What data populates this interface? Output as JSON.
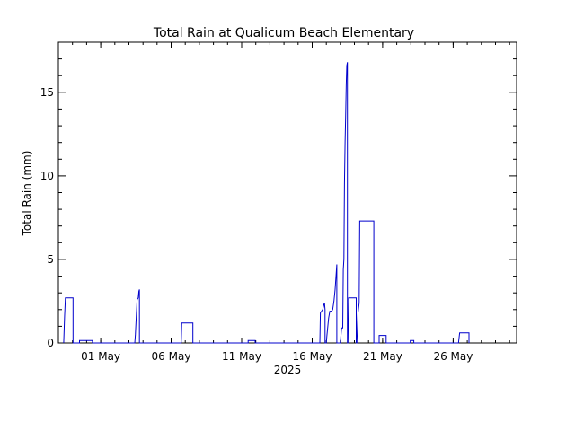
{
  "chart_data": {
    "type": "line",
    "title": "Total Rain at Qualicum Beach Elementary",
    "xlabel": "2025",
    "ylabel": "Total Rain (mm)",
    "x_unit": "date",
    "xlim": [
      "2025-04-28T00:00",
      "2025-05-30T12:00"
    ],
    "ylim": [
      0,
      18
    ],
    "x_ticks": [
      {
        "date": "2025-05-01",
        "label": "01 May"
      },
      {
        "date": "2025-05-06",
        "label": "06 May"
      },
      {
        "date": "2025-05-11",
        "label": "11 May"
      },
      {
        "date": "2025-05-16",
        "label": "16 May"
      },
      {
        "date": "2025-05-21",
        "label": "21 May"
      },
      {
        "date": "2025-05-26",
        "label": "26 May"
      }
    ],
    "y_ticks": [
      {
        "value": 0,
        "label": "0"
      },
      {
        "value": 5,
        "label": "5"
      },
      {
        "value": 10,
        "label": "10"
      },
      {
        "value": 15,
        "label": "15"
      }
    ],
    "grid": false,
    "line_color": "#0000cc",
    "series": [
      {
        "x": [
          "2025-04-28T09:00",
          "2025-04-28T10:30",
          "2025-04-28T12:00",
          "2025-04-29T01:00",
          "2025-04-29T01:00",
          "2025-04-29T12:00",
          "2025-04-29T12:00",
          "2025-04-30T10:00",
          "2025-04-30T10:00",
          "2025-05-03T10:00",
          "2025-05-03T11:00",
          "2025-05-03T14:00",
          "2025-05-03T16:00",
          "2025-05-03T17:00",
          "2025-05-03T18:00",
          "2025-05-03T18:00",
          "2025-05-06T17:00",
          "2025-05-06T18:00",
          "2025-05-06T18:00",
          "2025-05-07T13:00",
          "2025-05-07T13:00",
          "2025-05-11T11:00",
          "2025-05-11T11:00",
          "2025-05-11T23:00",
          "2025-05-11T23:00",
          "2025-05-16T13:00",
          "2025-05-16T14:00",
          "2025-05-16T18:00",
          "2025-05-16T20:00",
          "2025-05-16T21:00",
          "2025-05-16T22:00",
          "2025-05-16T22:00",
          "2025-05-17T00:00",
          "2025-05-17T01:00",
          "2025-05-17T04:00",
          "2025-05-17T06:00",
          "2025-05-17T09:00",
          "2025-05-17T11:00",
          "2025-05-17T13:00",
          "2025-05-17T15:00",
          "2025-05-17T18:00",
          "2025-05-17T18:00",
          "2025-05-18T00:00",
          "2025-05-18T02:00",
          "2025-05-18T04:00",
          "2025-05-18T05:00",
          "2025-05-18T06:00",
          "2025-05-18T07:00",
          "2025-05-18T08:00",
          "2025-05-18T09:00",
          "2025-05-18T10:00",
          "2025-05-18T11:00",
          "2025-05-18T12:00",
          "2025-05-18T12:00",
          "2025-05-18T13:00",
          "2025-05-18T14:00",
          "2025-05-18T14:00",
          "2025-05-19T03:00",
          "2025-05-19T03:00",
          "2025-05-19T04:00",
          "2025-05-19T06:00",
          "2025-05-19T08:00",
          "2025-05-19T09:00",
          "2025-05-19T09:00",
          "2025-05-20T09:00",
          "2025-05-20T09:00",
          "2025-05-20T18:00",
          "2025-05-20T18:00",
          "2025-05-21T06:00",
          "2025-05-21T06:00",
          "2025-05-22T23:00",
          "2025-05-22T23:00",
          "2025-05-23T05:00",
          "2025-05-23T05:00",
          "2025-05-26T09:00",
          "2025-05-26T11:00",
          "2025-05-26T11:00",
          "2025-05-27T03:00",
          "2025-05-27T03:00"
        ],
        "values": [
          0,
          1.6,
          2.7,
          2.7,
          0,
          0,
          0.15,
          0.15,
          0,
          0,
          0.5,
          2.6,
          2.7,
          3.1,
          3.2,
          0,
          0,
          1.2,
          1.2,
          1.2,
          0,
          0,
          0.15,
          0.15,
          0,
          0,
          1.8,
          2.0,
          2.3,
          2.4,
          2.0,
          0,
          0,
          0.4,
          1.5,
          1.9,
          1.9,
          2.0,
          2.5,
          3.2,
          4.7,
          0,
          0,
          0.9,
          0.9,
          4.4,
          5.0,
          9.5,
          12.0,
          13.5,
          15.5,
          16.6,
          16.8,
          0,
          0,
          2.5,
          2.7,
          2.7,
          0,
          0,
          1.8,
          2.4,
          7.3,
          7.3,
          7.3,
          0,
          0,
          0.45,
          0.45,
          0,
          0,
          0.15,
          0.15,
          0,
          0,
          0.6,
          0.6,
          0.6,
          0
        ]
      }
    ]
  }
}
